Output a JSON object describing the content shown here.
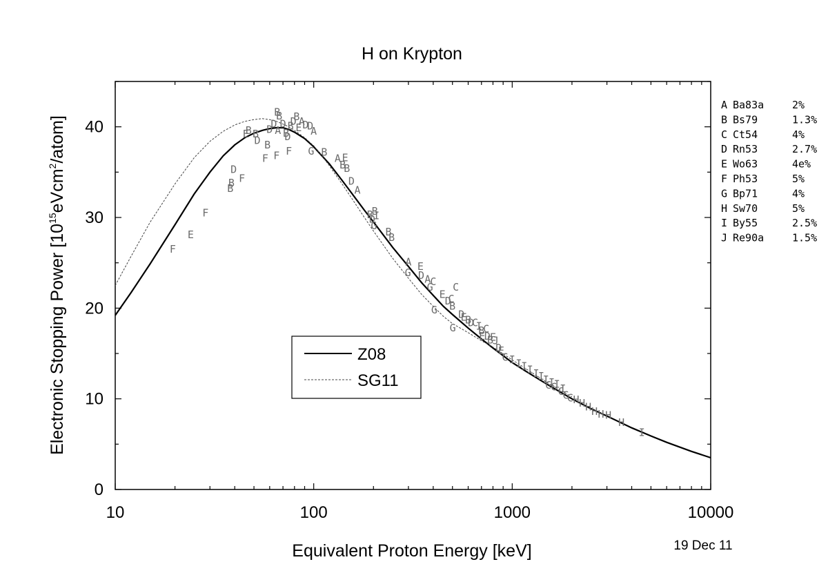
{
  "chart_data": {
    "type": "scatter",
    "title": "H on Krypton",
    "xlabel": "Equivalent Proton Energy [keV]",
    "ylabel_parts": [
      "Electronic Stopping Power [10",
      "15",
      "eVcm",
      "2",
      "/atom]"
    ],
    "date": "19 Dec 11",
    "xscale": "log",
    "xlim": [
      10,
      10000
    ],
    "ylim": [
      0,
      45
    ],
    "xticks": [
      10,
      100,
      1000,
      10000
    ],
    "xtick_labels": [
      "10",
      "100",
      "1000",
      "10000"
    ],
    "yticks": [
      0,
      10,
      20,
      30,
      40
    ],
    "ytick_labels": [
      "0",
      "10",
      "20",
      "30",
      "40"
    ],
    "legend": {
      "placement": "center-left",
      "items": [
        {
          "label": "Z08",
          "style": "solid"
        },
        {
          "label": "SG11",
          "style": "dashed"
        }
      ]
    },
    "series": [
      {
        "name": "Z08",
        "style": "solid",
        "color": "#000000",
        "x": [
          10,
          12,
          15,
          20,
          25,
          30,
          35,
          40,
          45,
          50,
          55,
          60,
          65,
          70,
          75,
          80,
          90,
          100,
          110,
          120,
          140,
          160,
          180,
          200,
          250,
          300,
          350,
          400,
          450,
          500,
          600,
          700,
          800,
          1000,
          1200,
          1500,
          2000,
          2500,
          3000,
          4000,
          5000,
          6000,
          8000,
          10000
        ],
        "y": [
          19.2,
          21.7,
          24.9,
          29.2,
          32.6,
          35.0,
          36.8,
          38.0,
          38.8,
          39.3,
          39.6,
          39.8,
          39.9,
          39.9,
          39.7,
          39.4,
          38.7,
          37.8,
          36.8,
          35.9,
          34.0,
          32.3,
          30.8,
          29.5,
          26.7,
          24.6,
          22.8,
          21.4,
          20.2,
          19.3,
          17.8,
          16.6,
          15.6,
          14.0,
          12.9,
          11.6,
          10.0,
          8.9,
          8.1,
          6.8,
          5.9,
          5.2,
          4.2,
          3.5
        ]
      },
      {
        "name": "SG11",
        "style": "dashed",
        "color": "#444444",
        "x": [
          10,
          12,
          15,
          20,
          25,
          30,
          35,
          40,
          45,
          50,
          55,
          60,
          65,
          70,
          75,
          80,
          90,
          100,
          110,
          120,
          140,
          160,
          180,
          200,
          250,
          300,
          350,
          400,
          450,
          500,
          600,
          700,
          800,
          1000,
          1500,
          2000
        ],
        "y": [
          22.5,
          25.7,
          29.5,
          33.7,
          36.6,
          38.4,
          39.5,
          40.2,
          40.6,
          40.8,
          40.9,
          40.8,
          40.6,
          40.3,
          40.0,
          39.6,
          38.8,
          37.9,
          36.8,
          35.7,
          33.6,
          31.7,
          30.0,
          28.5,
          25.5,
          23.3,
          21.5,
          20.2,
          19.1,
          18.3,
          17.3,
          16.4,
          15.7,
          14.3,
          11.8,
          10.2
        ]
      }
    ],
    "measurements": [
      {
        "letter": "F",
        "x": 19.5,
        "y": 26.5
      },
      {
        "letter": "E",
        "x": 24,
        "y": 28.1
      },
      {
        "letter": "F",
        "x": 28.5,
        "y": 30.5
      },
      {
        "letter": "B",
        "x": 38,
        "y": 33.2
      },
      {
        "letter": "B",
        "x": 38.5,
        "y": 33.8
      },
      {
        "letter": "D",
        "x": 39.5,
        "y": 35.3
      },
      {
        "letter": "F",
        "x": 43.5,
        "y": 34.3
      },
      {
        "letter": "E",
        "x": 45.5,
        "y": 39.2
      },
      {
        "letter": "B",
        "x": 47,
        "y": 39.6
      },
      {
        "letter": "B",
        "x": 51,
        "y": 39.2
      },
      {
        "letter": "D",
        "x": 52,
        "y": 38.5
      },
      {
        "letter": "F",
        "x": 57,
        "y": 36.5
      },
      {
        "letter": "B",
        "x": 58.5,
        "y": 38.0
      },
      {
        "letter": "D",
        "x": 60,
        "y": 39.7
      },
      {
        "letter": "D",
        "x": 63,
        "y": 40.3
      },
      {
        "letter": "B",
        "x": 65.5,
        "y": 41.6
      },
      {
        "letter": "B",
        "x": 67,
        "y": 41.2
      },
      {
        "letter": "A",
        "x": 66,
        "y": 39.6
      },
      {
        "letter": "F",
        "x": 65,
        "y": 36.8
      },
      {
        "letter": "D",
        "x": 70,
        "y": 40.3
      },
      {
        "letter": "B",
        "x": 72.5,
        "y": 39.3
      },
      {
        "letter": "D",
        "x": 74,
        "y": 38.9
      },
      {
        "letter": "F",
        "x": 75,
        "y": 37.3
      },
      {
        "letter": "B",
        "x": 76.5,
        "y": 40.1
      },
      {
        "letter": "D",
        "x": 79,
        "y": 40.6
      },
      {
        "letter": "B",
        "x": 82,
        "y": 41.1
      },
      {
        "letter": "E",
        "x": 84,
        "y": 39.9
      },
      {
        "letter": "A",
        "x": 87,
        "y": 40.6
      },
      {
        "letter": "D",
        "x": 91,
        "y": 40.2
      },
      {
        "letter": "D",
        "x": 96,
        "y": 40.1
      },
      {
        "letter": "A",
        "x": 100,
        "y": 39.5
      },
      {
        "letter": "G",
        "x": 97,
        "y": 37.3
      },
      {
        "letter": "B",
        "x": 113,
        "y": 37.2
      },
      {
        "letter": "A",
        "x": 132,
        "y": 36.5
      },
      {
        "letter": "E",
        "x": 144,
        "y": 36.6
      },
      {
        "letter": "B",
        "x": 140,
        "y": 35.8
      },
      {
        "letter": "B",
        "x": 147,
        "y": 35.4
      },
      {
        "letter": "D",
        "x": 155,
        "y": 34.0
      },
      {
        "letter": "A",
        "x": 166,
        "y": 33.0
      },
      {
        "letter": "B",
        "x": 192,
        "y": 30.3
      },
      {
        "letter": "D",
        "x": 197,
        "y": 29.8
      },
      {
        "letter": "B",
        "x": 203,
        "y": 30.7
      },
      {
        "letter": "G",
        "x": 201,
        "y": 29.1
      },
      {
        "letter": "I",
        "x": 207,
        "y": 30.2
      },
      {
        "letter": "B",
        "x": 238,
        "y": 28.4
      },
      {
        "letter": "B",
        "x": 247,
        "y": 27.8
      },
      {
        "letter": "A",
        "x": 300,
        "y": 25.1
      },
      {
        "letter": "G",
        "x": 298,
        "y": 23.9
      },
      {
        "letter": "E",
        "x": 345,
        "y": 24.6
      },
      {
        "letter": "D",
        "x": 348,
        "y": 23.6
      },
      {
        "letter": "A",
        "x": 375,
        "y": 23.2
      },
      {
        "letter": "G",
        "x": 385,
        "y": 22.3
      },
      {
        "letter": "C",
        "x": 400,
        "y": 22.9
      },
      {
        "letter": "G",
        "x": 405,
        "y": 19.8
      },
      {
        "letter": "E",
        "x": 445,
        "y": 21.5
      },
      {
        "letter": "D",
        "x": 475,
        "y": 20.8
      },
      {
        "letter": "C",
        "x": 493,
        "y": 21.0
      },
      {
        "letter": "B",
        "x": 500,
        "y": 20.2
      },
      {
        "letter": "G",
        "x": 502,
        "y": 17.8
      },
      {
        "letter": "C",
        "x": 520,
        "y": 22.3
      },
      {
        "letter": "D",
        "x": 555,
        "y": 19.3
      },
      {
        "letter": "E",
        "x": 570,
        "y": 19.0
      },
      {
        "letter": "B",
        "x": 600,
        "y": 18.7
      },
      {
        "letter": "D",
        "x": 620,
        "y": 18.4
      },
      {
        "letter": "C",
        "x": 650,
        "y": 18.4
      },
      {
        "letter": "I",
        "x": 680,
        "y": 18.0
      },
      {
        "letter": "B",
        "x": 700,
        "y": 17.5
      },
      {
        "letter": "E",
        "x": 705,
        "y": 16.9
      },
      {
        "letter": "C",
        "x": 740,
        "y": 17.7
      },
      {
        "letter": "D",
        "x": 750,
        "y": 16.9
      },
      {
        "letter": "B",
        "x": 775,
        "y": 16.5
      },
      {
        "letter": "E",
        "x": 800,
        "y": 16.8
      },
      {
        "letter": "J",
        "x": 825,
        "y": 16.4
      },
      {
        "letter": "D",
        "x": 855,
        "y": 15.6
      },
      {
        "letter": "E",
        "x": 880,
        "y": 15.3
      },
      {
        "letter": "C",
        "x": 920,
        "y": 14.6
      },
      {
        "letter": "I",
        "x": 1000,
        "y": 14.3
      },
      {
        "letter": "I",
        "x": 1080,
        "y": 13.9
      },
      {
        "letter": "I",
        "x": 1150,
        "y": 13.6
      },
      {
        "letter": "I",
        "x": 1230,
        "y": 13.2
      },
      {
        "letter": "I",
        "x": 1320,
        "y": 12.8
      },
      {
        "letter": "I",
        "x": 1400,
        "y": 12.5
      },
      {
        "letter": "I",
        "x": 1480,
        "y": 12.1
      },
      {
        "letter": "I",
        "x": 1580,
        "y": 11.8
      },
      {
        "letter": "I",
        "x": 1680,
        "y": 11.6
      },
      {
        "letter": "I",
        "x": 1800,
        "y": 11.1
      },
      {
        "letter": "C",
        "x": 1520,
        "y": 11.5
      },
      {
        "letter": "C",
        "x": 1620,
        "y": 11.3
      },
      {
        "letter": "C",
        "x": 1760,
        "y": 10.8
      },
      {
        "letter": "C",
        "x": 1860,
        "y": 10.4
      },
      {
        "letter": "C",
        "x": 1960,
        "y": 10.1
      },
      {
        "letter": "H",
        "x": 2100,
        "y": 9.9
      },
      {
        "letter": "H",
        "x": 2250,
        "y": 9.5
      },
      {
        "letter": "H",
        "x": 2420,
        "y": 9.1
      },
      {
        "letter": "H",
        "x": 2600,
        "y": 8.6
      },
      {
        "letter": "H",
        "x": 2800,
        "y": 8.3
      },
      {
        "letter": "H",
        "x": 3050,
        "y": 8.2
      },
      {
        "letter": "H",
        "x": 3550,
        "y": 7.4
      },
      {
        "letter": "I",
        "x": 4500,
        "y": 6.3
      }
    ],
    "references": [
      {
        "code": "A",
        "ref": "Ba83a",
        "unc": "2%"
      },
      {
        "code": "B",
        "ref": "Bs79",
        "unc": "1.3%"
      },
      {
        "code": "C",
        "ref": "Ct54",
        "unc": "4%"
      },
      {
        "code": "D",
        "ref": "Rn53",
        "unc": "2.7%"
      },
      {
        "code": "E",
        "ref": "Wo63",
        "unc": "4e%"
      },
      {
        "code": "F",
        "ref": "Ph53",
        "unc": "5%"
      },
      {
        "code": "G",
        "ref": "Bp71",
        "unc": "4%"
      },
      {
        "code": "H",
        "ref": "Sw70",
        "unc": "5%"
      },
      {
        "code": "I",
        "ref": "By55",
        "unc": "2.5%"
      },
      {
        "code": "J",
        "ref": "Re90a",
        "unc": "1.5%"
      }
    ]
  }
}
